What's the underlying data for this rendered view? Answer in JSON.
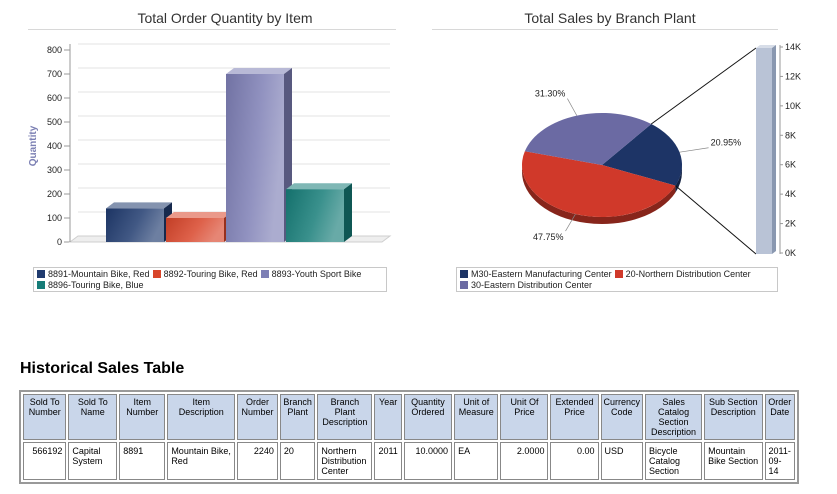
{
  "chart_data": [
    {
      "type": "bar",
      "title": "Total Order Quantity by Item",
      "ylabel": "Quantity",
      "xlabel": "",
      "ylim": [
        0,
        800
      ],
      "y_ticks": [
        "0",
        "100",
        "200",
        "300",
        "400",
        "500",
        "600",
        "700",
        "800"
      ],
      "grid": true,
      "legend_position": "bottom",
      "series": [
        {
          "name": "8891-Mountain Bike, Red",
          "value": 140,
          "color": "#1f3a6e"
        },
        {
          "name": "8892-Touring Bike, Red",
          "value": 100,
          "color": "#d8452a"
        },
        {
          "name": "8893-Youth Sport Bike",
          "value": 700,
          "color": "#7d7fb5"
        },
        {
          "name": "8896-Touring Bike, Blue",
          "value": 220,
          "color": "#167c78"
        }
      ]
    },
    {
      "type": "pie",
      "title": "Total Sales by Branch Plant",
      "legend_position": "bottom",
      "slices": [
        {
          "name": "M30-Eastern Manufacturing Center",
          "percent": 20.95,
          "label": "20.95%",
          "color": "#1d3466"
        },
        {
          "name": "20-Northern Distribution Center",
          "percent": 47.75,
          "label": "47.75%",
          "color": "#d0392a"
        },
        {
          "name": "30-Eastern Distribution Center",
          "percent": 31.3,
          "label": "31.30%",
          "color": "#6b6aa3"
        }
      ],
      "side_axis_ticks": [
        "0K",
        "2K",
        "4K",
        "6K",
        "8K",
        "10K",
        "12K",
        "14K"
      ],
      "side_axis_max": 14
    }
  ],
  "table": {
    "title": "Historical Sales Table",
    "headers": [
      "Sold To Number",
      "Sold To Name",
      "Item Number",
      "Item Description",
      "Order Number",
      "Branch Plant",
      "Branch Plant Description",
      "Year",
      "Quantity Ordered",
      "Unit of Measure",
      "Unit Of Price",
      "Extended Price",
      "Currency Code",
      "Sales Catalog Section Description",
      "Sub Section Description",
      "Order Date"
    ],
    "rows": [
      [
        "566192",
        "Capital System",
        "8891",
        "Mountain Bike, Red",
        "2240",
        "20",
        "Northern Distribution Center",
        "2011",
        "10.0000",
        "EA",
        "2.0000",
        "0.00",
        "USD",
        "Bicycle Catalog Section",
        "Mountain Bike Section",
        "2011-09-14"
      ]
    ]
  }
}
